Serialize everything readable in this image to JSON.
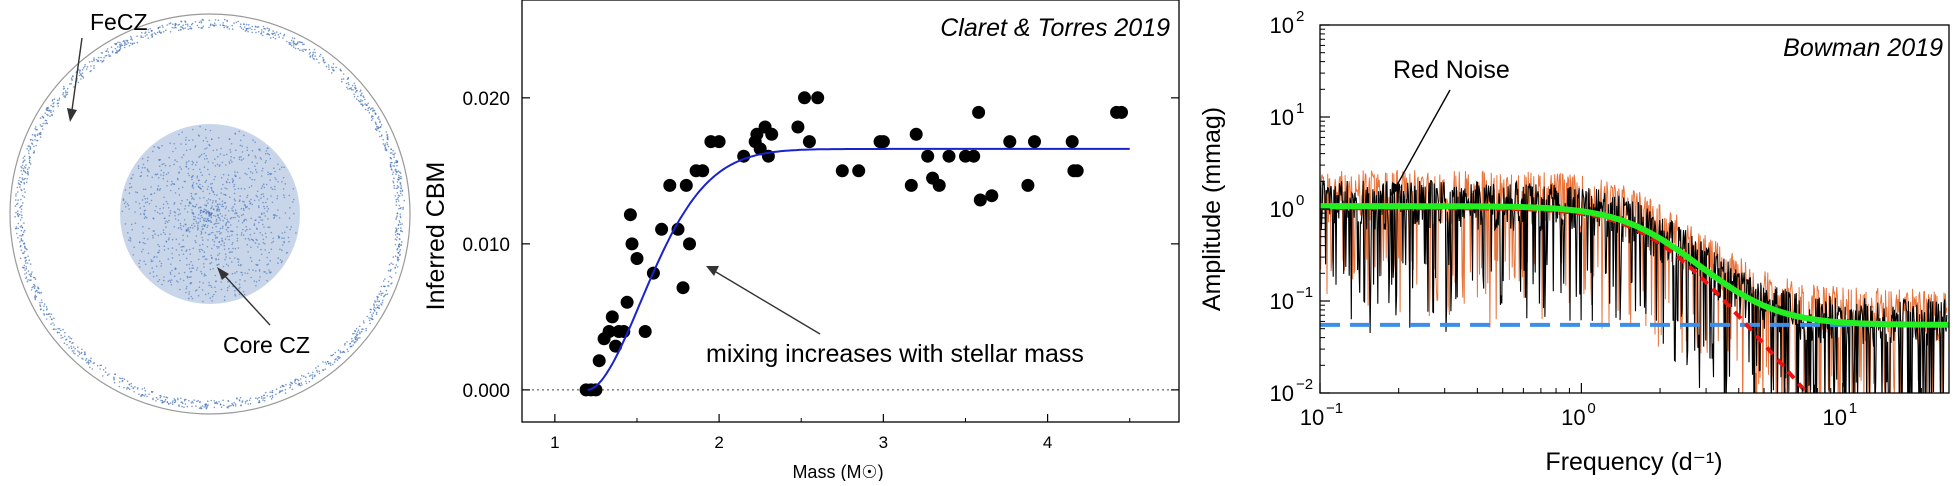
{
  "panels": [
    {
      "label": "FeCZ",
      "label2": "Core CZ"
    }
  ],
  "chart_data": [
    {
      "type": "scatter",
      "title": "Claret & Torres 2019",
      "xlabel": "Mass (M☉)",
      "ylabel": "Inferred CBM",
      "xlim": [
        0.8,
        4.8
      ],
      "ylim": [
        -0.0022,
        0.0267
      ],
      "xticks": [
        "1",
        "2",
        "3",
        "4"
      ],
      "yticks": [
        "0.000",
        "0.010",
        "0.020"
      ],
      "annotation": "mixing increases with stellar mass",
      "points": [
        [
          1.19,
          0.0
        ],
        [
          1.22,
          0.0
        ],
        [
          1.25,
          0.0
        ],
        [
          1.27,
          0.002
        ],
        [
          1.3,
          0.0035
        ],
        [
          1.33,
          0.004
        ],
        [
          1.35,
          0.005
        ],
        [
          1.37,
          0.003
        ],
        [
          1.39,
          0.004
        ],
        [
          1.42,
          0.004
        ],
        [
          1.44,
          0.006
        ],
        [
          1.46,
          0.012
        ],
        [
          1.47,
          0.01
        ],
        [
          1.5,
          0.009
        ],
        [
          1.55,
          0.004
        ],
        [
          1.6,
          0.008
        ],
        [
          1.65,
          0.011
        ],
        [
          1.7,
          0.014
        ],
        [
          1.75,
          0.011
        ],
        [
          1.78,
          0.007
        ],
        [
          1.8,
          0.014
        ],
        [
          1.82,
          0.01
        ],
        [
          1.86,
          0.015
        ],
        [
          1.9,
          0.015
        ],
        [
          1.95,
          0.017
        ],
        [
          2.0,
          0.017
        ],
        [
          2.15,
          0.016
        ],
        [
          2.22,
          0.017
        ],
        [
          2.23,
          0.0175
        ],
        [
          2.25,
          0.0165
        ],
        [
          2.28,
          0.018
        ],
        [
          2.3,
          0.016
        ],
        [
          2.32,
          0.0175
        ],
        [
          2.48,
          0.018
        ],
        [
          2.52,
          0.02
        ],
        [
          2.55,
          0.017
        ],
        [
          2.6,
          0.02
        ],
        [
          2.75,
          0.015
        ],
        [
          2.85,
          0.015
        ],
        [
          2.98,
          0.017
        ],
        [
          3.0,
          0.017
        ],
        [
          3.17,
          0.014
        ],
        [
          3.2,
          0.0175
        ],
        [
          3.27,
          0.016
        ],
        [
          3.3,
          0.0145
        ],
        [
          3.34,
          0.014
        ],
        [
          3.4,
          0.016
        ],
        [
          3.5,
          0.016
        ],
        [
          3.55,
          0.016
        ],
        [
          3.58,
          0.019
        ],
        [
          3.59,
          0.013
        ],
        [
          3.66,
          0.0133
        ],
        [
          3.77,
          0.017
        ],
        [
          3.88,
          0.014
        ],
        [
          3.92,
          0.017
        ],
        [
          4.15,
          0.017
        ],
        [
          4.16,
          0.015
        ],
        [
          4.18,
          0.015
        ],
        [
          4.42,
          0.019
        ],
        [
          4.45,
          0.019
        ]
      ],
      "fit_curve": {
        "type": "logistic",
        "x_start": 1.2,
        "x_end": 4.5,
        "asymptote": 0.0165
      }
    },
    {
      "type": "line",
      "title": "Bowman 2019",
      "xlabel": "Frequency (d⁻¹)",
      "ylabel": "Amplitude (mmag)",
      "xscale": "log",
      "yscale": "log",
      "xlim": [
        0.1,
        25
      ],
      "ylim": [
        0.01,
        100
      ],
      "xticks": [
        {
          "value": 0.1,
          "base": "10",
          "exp": "−1"
        },
        {
          "value": 1,
          "base": "10",
          "exp": "0"
        },
        {
          "value": 10,
          "base": "10",
          "exp": "1"
        }
      ],
      "yticks": [
        {
          "value": 0.01,
          "base": "10",
          "exp": "−2"
        },
        {
          "value": 0.1,
          "base": "10",
          "exp": "−1"
        },
        {
          "value": 1,
          "base": "10",
          "exp": "0"
        },
        {
          "value": 10,
          "base": "10",
          "exp": "1"
        },
        {
          "value": 100,
          "base": "10",
          "exp": "2"
        }
      ],
      "annotation": "Red Noise",
      "series": [
        {
          "color": "#e8743b",
          "type": "amplitude-spectrum"
        },
        {
          "color": "#000000",
          "type": "amplitude-spectrum"
        },
        {
          "color": "#22ee22",
          "type": "model",
          "A0": 1.02,
          "nu_char": 1.8,
          "gamma": 3.3,
          "white": 0.055
        },
        {
          "color": "#3a8fe8",
          "type": "white-noise",
          "value": 0.055
        },
        {
          "color": "#ee1111",
          "type": "red-noise",
          "A0": 1.02,
          "nu_char": 1.8,
          "gamma": 3.3
        }
      ]
    }
  ]
}
